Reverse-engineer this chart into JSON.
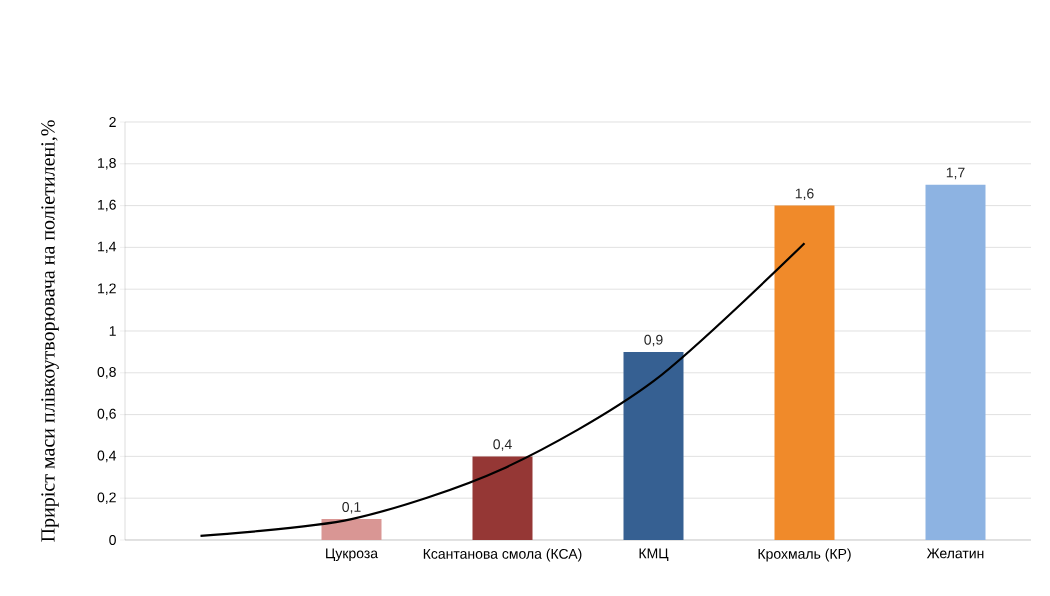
{
  "chart_data": {
    "type": "bar",
    "ylabel": "Приріст маси плівкоутворювача на поліетилені,%",
    "categories": [
      null,
      "Цукроза",
      "Ксантанова смола (КСА)",
      "КМЦ",
      "Крохмаль (КР)",
      "Желатин"
    ],
    "series": [
      {
        "values": [
          null,
          0.1,
          0.4,
          0.9,
          1.6,
          1.7
        ],
        "value_labels": [
          null,
          "0,1",
          "0,4",
          "0,9",
          "1,6",
          "1,7"
        ],
        "colors": [
          "#d99694",
          "#d99694",
          "#953735",
          "#366092",
          "#f08a2a",
          "#8db3e2"
        ]
      },
      {
        "type": "line",
        "color": "#000000",
        "values": [
          0.02,
          0.1,
          0.34,
          0.76,
          1.42,
          null
        ]
      }
    ],
    "ylim": [
      0,
      2
    ],
    "yticks": [
      0,
      {
        "value": 0.2,
        "label": "0,2"
      },
      {
        "value": 0.4,
        "label": "0,4"
      },
      {
        "value": 0.6,
        "label": "0,6"
      },
      {
        "value": 0.8,
        "label": "0,8"
      },
      1,
      {
        "value": 1.2,
        "label": "1,2"
      },
      {
        "value": 1.4,
        "label": "1,4"
      },
      {
        "value": 1.6,
        "label": "1,6"
      },
      {
        "value": 1.8,
        "label": "1,8"
      },
      2
    ],
    "grid": "y",
    "marker": "none",
    "line_style": "solid"
  }
}
